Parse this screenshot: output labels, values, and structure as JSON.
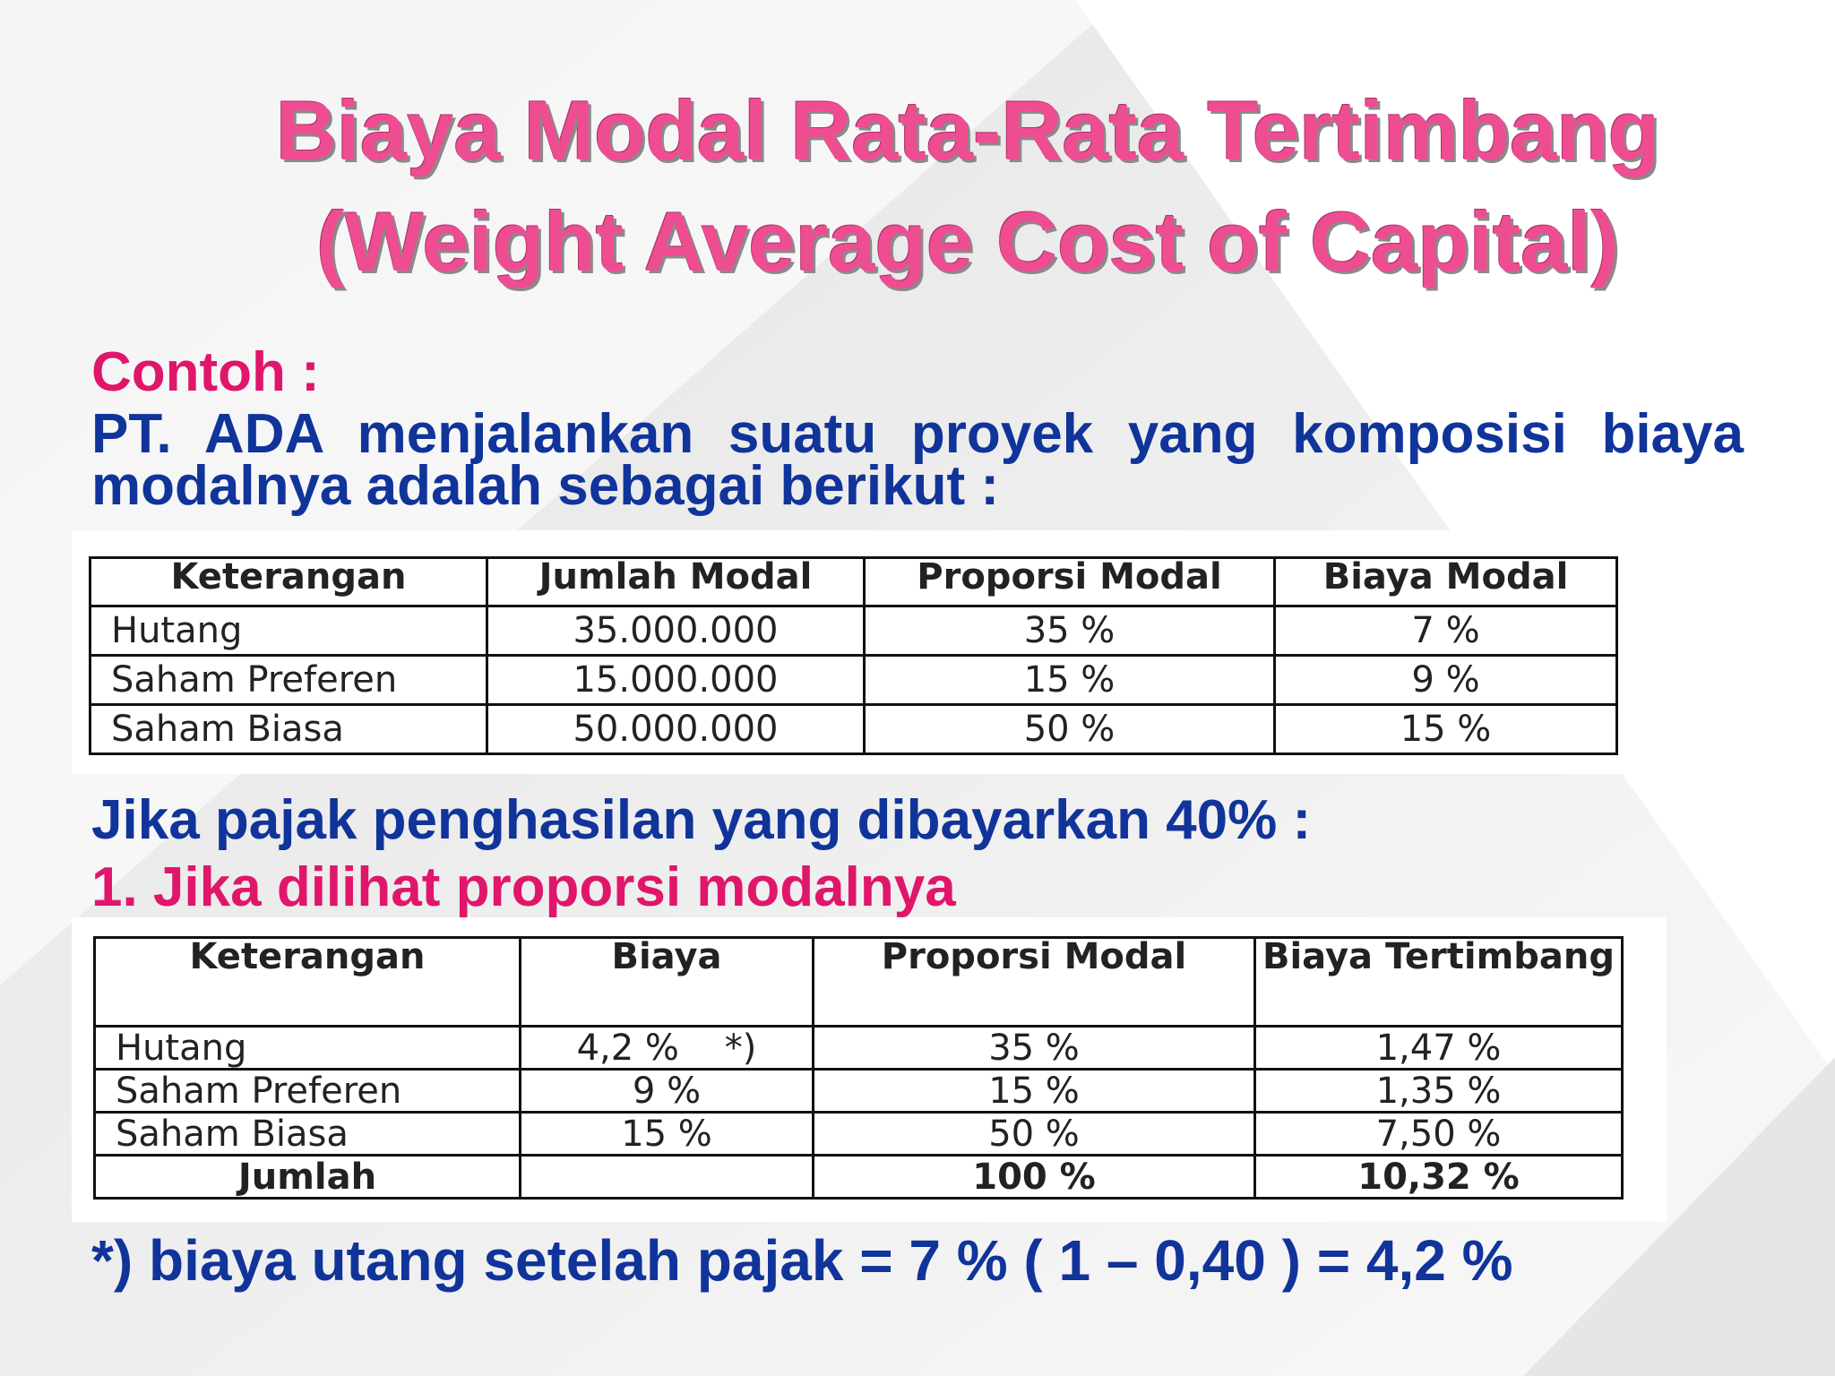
{
  "title": [
    "Biaya Modal Rata-Rata Tertimbang",
    "(Weight Average Cost of Capital)"
  ],
  "intro_label": "Contoh :",
  "intro_text": "PT. ADA menjalankan suatu proyek yang  komposisi biaya modalnya adalah sebagai berikut :",
  "table1": {
    "header": [
      "Keterangan",
      "Jumlah Modal",
      "Proporsi Modal",
      "Biaya Modal"
    ],
    "rows": [
      [
        "Hutang",
        "35.000.000",
        "35 %",
        "7 %"
      ],
      [
        "Saham Preferen",
        "15.000.000",
        "15 %",
        "9 %"
      ],
      [
        "Saham Biasa",
        "50.000.000",
        "50 %",
        "15 %"
      ]
    ]
  },
  "tax_text": "Jika pajak penghasilan yang dibayarkan 40% :",
  "step": "1. Jika dilihat proporsi modalnya",
  "table2": {
    "header": [
      "Keterangan",
      "Biaya",
      "Proporsi Modal",
      "Biaya Tertimbang"
    ],
    "rows": [
      [
        "Hutang",
        "4,2 %    *)",
        "35 %",
        "1,47 %"
      ],
      [
        "Saham Preferen",
        "9 %",
        "15 %",
        "1,35 %"
      ],
      [
        "Saham Biasa",
        "15 %",
        "50 %",
        "7,50 %"
      ]
    ],
    "total": {
      "label": "Jumlah",
      "proporsi": "100 %",
      "biaya_tertimbang": "10,32 %"
    }
  },
  "footnote": "*) biaya utang setelah pajak = 7 % ( 1 – 0,40 ) = 4,2 %"
}
